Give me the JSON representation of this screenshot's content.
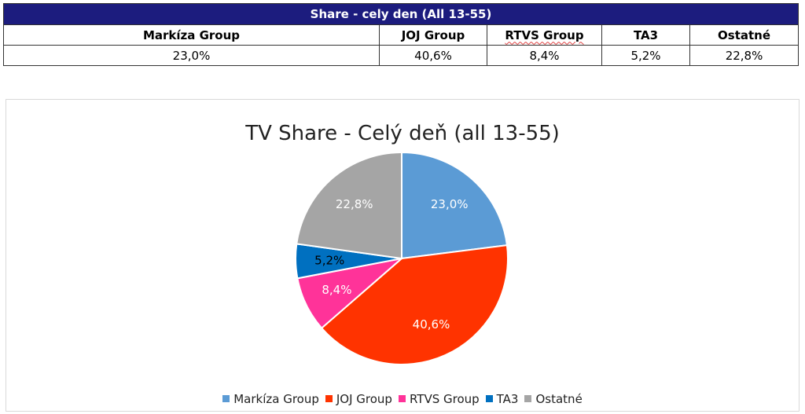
{
  "table": {
    "title": "Share - cely den (All 13-55)",
    "headers": [
      "Markíza Group",
      "JOJ Group",
      "RTVS Group",
      "TA3",
      "Ostatné"
    ],
    "values": [
      "23,0%",
      "40,6%",
      "8,4%",
      "5,2%",
      "22,8%"
    ],
    "header_bg": "#1c1c7e"
  },
  "chart_data": {
    "type": "pie",
    "title": "TV Share - Celý deň (all 13-55)",
    "categories": [
      "Markíza Group",
      "JOJ Group",
      "RTVS Group",
      "TA3",
      "Ostatné"
    ],
    "values": [
      23.0,
      40.6,
      8.4,
      5.2,
      22.8
    ],
    "labels": [
      "23,0%",
      "40,6%",
      "8,4%",
      "5,2%",
      "22,8%"
    ],
    "colors": [
      "#5b9bd5",
      "#ff3300",
      "#ff3399",
      "#0070c0",
      "#a5a5a5"
    ],
    "label_colors": [
      "#ffffff",
      "#ffffff",
      "#ffffff",
      "#000000",
      "#ffffff"
    ],
    "legend_position": "bottom"
  }
}
